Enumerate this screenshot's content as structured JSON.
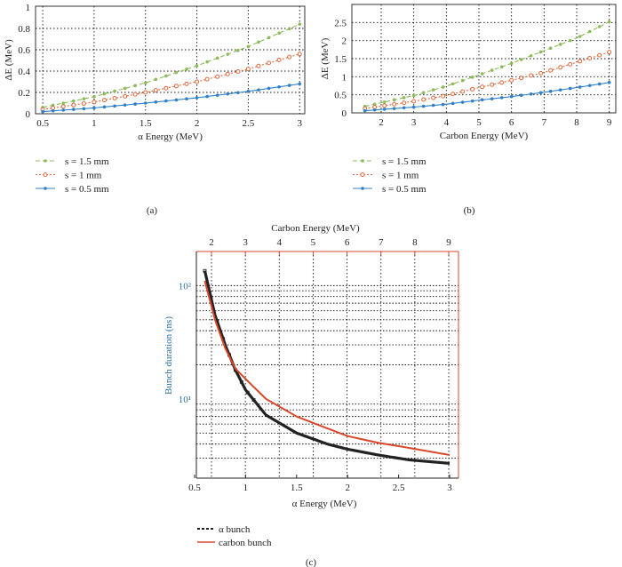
{
  "colors": {
    "green": "#8dbb5a",
    "orange": "#e0693a",
    "blue": "#2f80c6",
    "black": "#222222",
    "red": "#d9472b",
    "axisblue": "#2a6f9a"
  },
  "chart_data": [
    {
      "id": "a",
      "type": "line",
      "caption": "(a)",
      "xlabel": "α Energy (MeV)",
      "ylabel": "ΔE (MeV)",
      "xlim": [
        0.43,
        3.05
      ],
      "ylim": [
        0,
        1
      ],
      "xticks": [
        0.5,
        1,
        1.5,
        2,
        2.5,
        3
      ],
      "xtick_labels": [
        "0.5",
        "1",
        "1.5",
        "2",
        "2.5",
        "3"
      ],
      "yticks": [
        0,
        0.2,
        0.4,
        0.6,
        0.8,
        1
      ],
      "ytick_labels": [
        "0",
        "0.2",
        "0.4",
        "0.6",
        "0.8",
        "1"
      ],
      "grid": true,
      "legend_position": "below",
      "x": [
        0.5,
        1,
        1.5,
        2,
        2.5,
        3
      ],
      "marker_step": 0.1,
      "series": [
        {
          "name": "s = 1.5 mm",
          "color": "green",
          "dash": "5,3",
          "marker": "dot",
          "values": [
            0.06,
            0.16,
            0.29,
            0.45,
            0.63,
            0.84
          ]
        },
        {
          "name": "s = 1 mm",
          "color": "orange",
          "dash": "2,2",
          "marker": "ring",
          "values": [
            0.04,
            0.11,
            0.2,
            0.3,
            0.42,
            0.56
          ]
        },
        {
          "name": "s = 0.5 mm",
          "color": "blue",
          "dash": "",
          "marker": "dot",
          "values": [
            0.02,
            0.055,
            0.1,
            0.15,
            0.21,
            0.28
          ]
        }
      ]
    },
    {
      "id": "b",
      "type": "line",
      "caption": "(b)",
      "xlabel": "Carbon Energy (MeV)",
      "ylabel": "ΔE (MeV)",
      "xlim": [
        1.1,
        9.2
      ],
      "ylim": [
        0,
        3
      ],
      "xticks": [
        2,
        3,
        4,
        5,
        6,
        7,
        8,
        9
      ],
      "xtick_labels": [
        "2",
        "3",
        "4",
        "5",
        "6",
        "7",
        "8",
        "9"
      ],
      "yticks": [
        0,
        0.5,
        1,
        1.5,
        2,
        2.5
      ],
      "ytick_labels": [
        "0",
        "0.5",
        "1",
        "1.5",
        "2",
        "2.5"
      ],
      "grid": true,
      "legend_position": "below",
      "x": [
        1.5,
        3,
        4,
        5,
        6,
        7,
        8,
        9
      ],
      "marker_step": 0.3,
      "series": [
        {
          "name": "s = 1.5 mm",
          "color": "green",
          "dash": "5,3",
          "marker": "dot",
          "values": [
            0.18,
            0.48,
            0.74,
            1.05,
            1.37,
            1.72,
            2.07,
            2.52
          ]
        },
        {
          "name": "s = 1 mm",
          "color": "orange",
          "dash": "2,2",
          "marker": "ring",
          "values": [
            0.12,
            0.32,
            0.48,
            0.7,
            0.9,
            1.12,
            1.4,
            1.68
          ]
        },
        {
          "name": "s = 0.5 mm",
          "color": "blue",
          "dash": "",
          "marker": "dot",
          "values": [
            0.06,
            0.16,
            0.24,
            0.35,
            0.45,
            0.57,
            0.7,
            0.84
          ]
        }
      ]
    },
    {
      "id": "c",
      "type": "line",
      "caption": "(c)",
      "xlabel": "α Energy (MeV)",
      "x2label": "Carbon Energy (MeV)",
      "ylabel": "Bunch duration (ns)",
      "xlim": [
        0.5,
        3.1
      ],
      "x2lim": [
        1.8,
        9.35
      ],
      "ylim": [
        2,
        200
      ],
      "yscale": "log",
      "xticks": [
        0.5,
        1,
        1.5,
        2,
        2.5,
        3
      ],
      "xtick_labels": [
        "0.5",
        "1",
        "1.5",
        "2",
        "2.5",
        "3"
      ],
      "x2ticks": [
        2,
        3,
        4,
        5,
        6,
        7,
        8,
        9
      ],
      "x2tick_labels": [
        "2",
        "3",
        "4",
        "5",
        "6",
        "7",
        "8",
        "9"
      ],
      "yticks": [
        10,
        100
      ],
      "ytick_labels": [
        "10¹",
        "10²"
      ],
      "grid": true,
      "legend_position": "below",
      "x": [
        0.6,
        0.7,
        0.8,
        0.9,
        1,
        1.2,
        1.5,
        1.8,
        2,
        2.3,
        2.6,
        3
      ],
      "series": [
        {
          "name": "α bunch",
          "color": "black",
          "values": [
            135,
            55,
            30,
            18,
            12,
            7.2,
            5,
            4,
            3.6,
            3.2,
            2.9,
            2.7
          ]
        },
        {
          "name": "carbon bunch",
          "color": "red",
          "values": [
            110,
            50,
            28,
            18.5,
            15,
            10,
            7,
            5.5,
            4.7,
            4.1,
            3.7,
            3.2
          ]
        }
      ]
    }
  ]
}
